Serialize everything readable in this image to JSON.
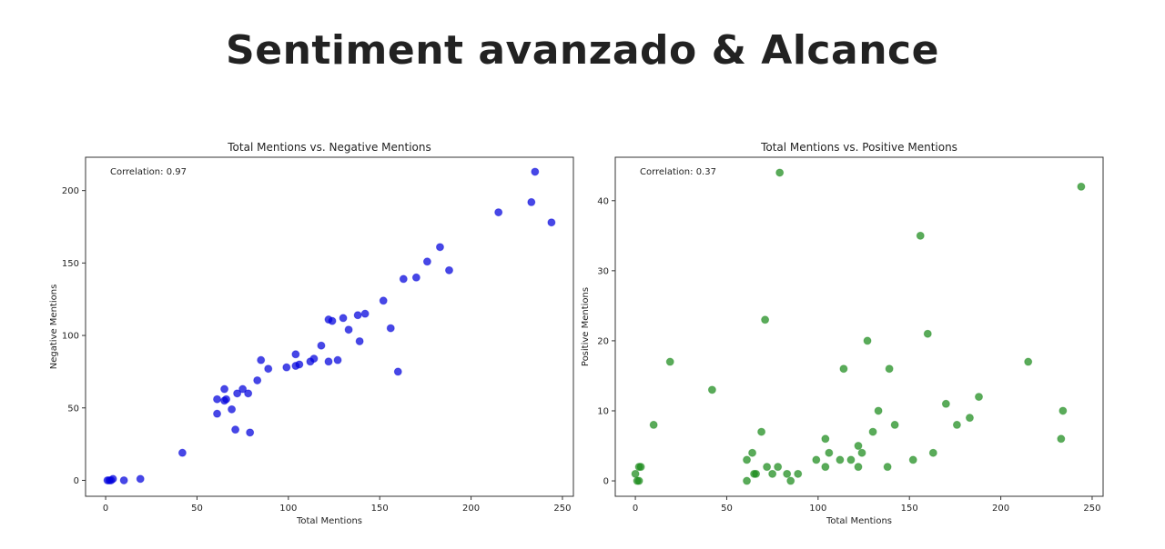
{
  "page_title": "Sentiment avanzado & Alcance",
  "chart_data": [
    {
      "type": "scatter",
      "title": "Total Mentions vs. Negative Mentions",
      "xlabel": "Total Mentions",
      "ylabel": "Negative Mentions",
      "annotation": "Correlation: 0.97",
      "color": "#0000dd",
      "xlim": [
        -11,
        256
      ],
      "ylim": [
        -11,
        223
      ],
      "xticks": [
        0,
        50,
        100,
        150,
        200,
        250
      ],
      "yticks": [
        0,
        50,
        100,
        150,
        200
      ],
      "grid": false,
      "points": [
        [
          1,
          0
        ],
        [
          2,
          0
        ],
        [
          3,
          0
        ],
        [
          4,
          1
        ],
        [
          10,
          0
        ],
        [
          19,
          1
        ],
        [
          42,
          19
        ],
        [
          61,
          46
        ],
        [
          61,
          56
        ],
        [
          65,
          63
        ],
        [
          65,
          55
        ],
        [
          66,
          56
        ],
        [
          69,
          49
        ],
        [
          71,
          35
        ],
        [
          72,
          60
        ],
        [
          75,
          63
        ],
        [
          78,
          60
        ],
        [
          79,
          33
        ],
        [
          83,
          69
        ],
        [
          85,
          83
        ],
        [
          89,
          77
        ],
        [
          99,
          78
        ],
        [
          104,
          79
        ],
        [
          104,
          87
        ],
        [
          106,
          80
        ],
        [
          112,
          82
        ],
        [
          114,
          84
        ],
        [
          118,
          93
        ],
        [
          122,
          111
        ],
        [
          124,
          110
        ],
        [
          122,
          82
        ],
        [
          127,
          83
        ],
        [
          130,
          112
        ],
        [
          133,
          104
        ],
        [
          138,
          114
        ],
        [
          139,
          96
        ],
        [
          142,
          115
        ],
        [
          152,
          124
        ],
        [
          156,
          105
        ],
        [
          160,
          75
        ],
        [
          163,
          139
        ],
        [
          170,
          140
        ],
        [
          176,
          151
        ],
        [
          183,
          161
        ],
        [
          188,
          145
        ],
        [
          215,
          185
        ],
        [
          233,
          192
        ],
        [
          235,
          213
        ],
        [
          244,
          178
        ]
      ]
    },
    {
      "type": "scatter",
      "title": "Total Mentions vs. Positive Mentions",
      "xlabel": "Total Mentions",
      "ylabel": "Positive Mentions",
      "annotation": "Correlation: 0.37",
      "color": "#1a8a1a",
      "xlim": [
        -11,
        256
      ],
      "ylim": [
        -2.2,
        46.2
      ],
      "xticks": [
        0,
        50,
        100,
        150,
        200,
        250
      ],
      "yticks": [
        0,
        10,
        20,
        30,
        40
      ],
      "grid": false,
      "points": [
        [
          0,
          1
        ],
        [
          1,
          0
        ],
        [
          2,
          0
        ],
        [
          2,
          2
        ],
        [
          3,
          2
        ],
        [
          10,
          8
        ],
        [
          19,
          17
        ],
        [
          42,
          13
        ],
        [
          61,
          3
        ],
        [
          61,
          0
        ],
        [
          64,
          4
        ],
        [
          65,
          1
        ],
        [
          66,
          1
        ],
        [
          69,
          7
        ],
        [
          71,
          23
        ],
        [
          72,
          2
        ],
        [
          75,
          1
        ],
        [
          78,
          2
        ],
        [
          79,
          44
        ],
        [
          83,
          1
        ],
        [
          85,
          0
        ],
        [
          89,
          1
        ],
        [
          99,
          3
        ],
        [
          104,
          6
        ],
        [
          104,
          2
        ],
        [
          106,
          4
        ],
        [
          112,
          3
        ],
        [
          114,
          16
        ],
        [
          118,
          3
        ],
        [
          122,
          5
        ],
        [
          122,
          2
        ],
        [
          124,
          4
        ],
        [
          127,
          20
        ],
        [
          130,
          7
        ],
        [
          133,
          10
        ],
        [
          138,
          2
        ],
        [
          139,
          16
        ],
        [
          142,
          8
        ],
        [
          152,
          3
        ],
        [
          156,
          35
        ],
        [
          160,
          21
        ],
        [
          163,
          4
        ],
        [
          170,
          11
        ],
        [
          176,
          8
        ],
        [
          183,
          9
        ],
        [
          188,
          12
        ],
        [
          215,
          17
        ],
        [
          233,
          6
        ],
        [
          234,
          10
        ],
        [
          244,
          42
        ]
      ]
    }
  ]
}
